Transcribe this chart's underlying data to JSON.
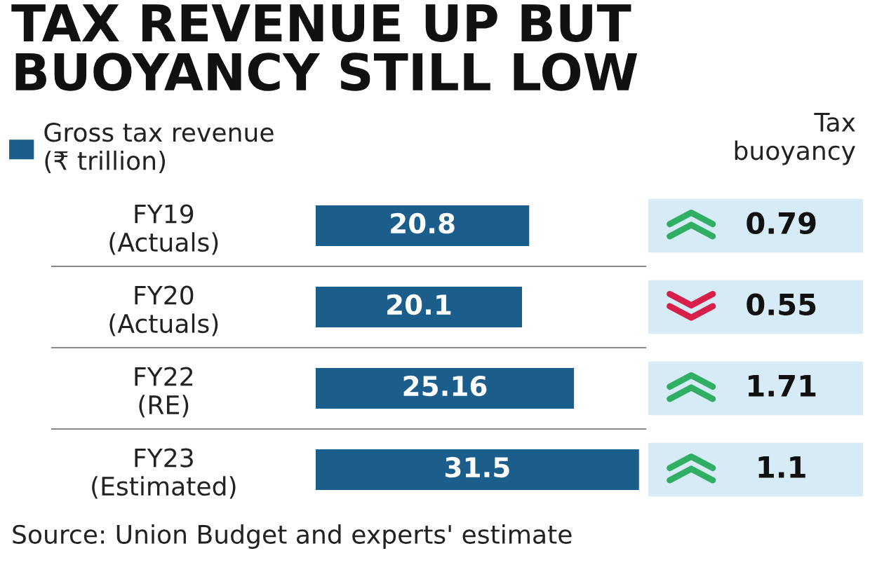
{
  "chart_data": [
    {
      "type": "bar",
      "orientation": "horizontal",
      "title": "TAX REVENUE UP BUT BUOYANCY STILL LOW",
      "categories": [
        "FY19\n(Actuals)",
        "FY20\n(Actuals)",
        "FY22\n(RE)",
        "FY23\n(Estimated)"
      ],
      "series": [
        {
          "name": "Gross tax revenue (₹ trillion)",
          "color": "#1b5e8c",
          "values": [
            20.8,
            20.1,
            25.16,
            31.5
          ]
        }
      ],
      "data_labels": true,
      "legend": "top left",
      "grid": false,
      "annotations": [
        "Source: Union Budget and experts' estimate"
      ]
    },
    {
      "type": "other",
      "title": "Tax\nbuoyancy",
      "annotations": [
        "0.79",
        "0.55",
        "1.71",
        "1.1"
      ],
      "colors": [
        "#2fae64",
        "#d81e4a",
        "#2fae64",
        "#2fae64"
      ]
    }
  ]
}
